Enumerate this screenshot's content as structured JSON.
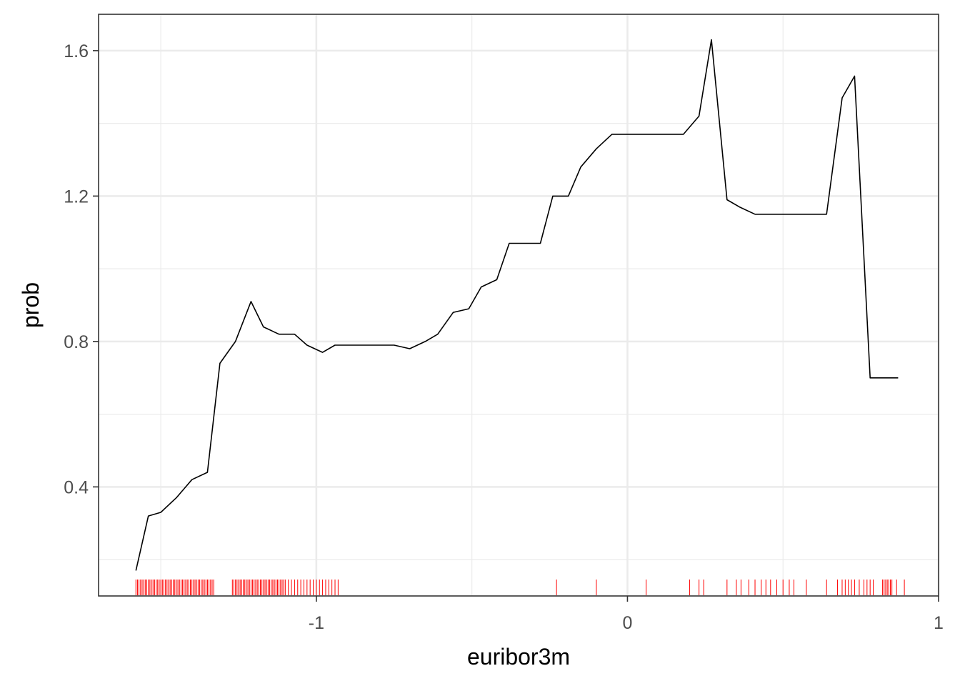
{
  "chart_data": {
    "type": "line",
    "title": "",
    "xlabel": "euribor3m",
    "ylabel": "prob",
    "xlim": [
      -1.7,
      1.0
    ],
    "ylim": [
      0.1,
      1.7
    ],
    "x_ticks": [
      -1,
      0,
      1
    ],
    "x_tick_labels": [
      "-1",
      "0",
      "1"
    ],
    "y_ticks": [
      0.4,
      0.8,
      1.2,
      1.6
    ],
    "y_tick_labels": [
      "0.4",
      "0.8",
      "1.2",
      "1.6"
    ],
    "grid": true,
    "legend": "none",
    "colors": {
      "line": "#000000",
      "rug": "#ff0000",
      "grid": "#ebebeb",
      "border": "#333333"
    },
    "series": [
      {
        "x": [
          -1.58,
          -1.54,
          -1.5,
          -1.45,
          -1.4,
          -1.35,
          -1.31,
          -1.26,
          -1.21,
          -1.17,
          -1.12,
          -1.07,
          -1.03,
          -0.98,
          -0.94,
          -0.89,
          -0.84,
          -0.8,
          -0.75,
          -0.7,
          -0.65,
          -0.61,
          -0.56,
          -0.51,
          -0.47,
          -0.42,
          -0.38,
          -0.33,
          -0.28,
          -0.24,
          -0.19,
          -0.15,
          -0.1,
          -0.05,
          -0.01,
          0.04,
          0.09,
          0.13,
          0.18,
          0.23,
          0.27,
          0.32,
          0.36,
          0.41,
          0.45,
          0.5,
          0.55,
          0.59,
          0.64,
          0.69,
          0.73,
          0.78,
          0.83,
          0.87
        ],
        "y": [
          0.17,
          0.32,
          0.33,
          0.37,
          0.42,
          0.44,
          0.74,
          0.8,
          0.91,
          0.84,
          0.82,
          0.82,
          0.79,
          0.77,
          0.79,
          0.79,
          0.79,
          0.79,
          0.79,
          0.78,
          0.8,
          0.82,
          0.88,
          0.89,
          0.95,
          0.97,
          1.07,
          1.07,
          1.07,
          1.2,
          1.2,
          1.28,
          1.33,
          1.37,
          1.37,
          1.37,
          1.37,
          1.37,
          1.37,
          1.42,
          1.63,
          1.19,
          1.17,
          1.15,
          1.15,
          1.15,
          1.15,
          1.15,
          1.15,
          1.47,
          1.53,
          0.7,
          0.7,
          0.7
        ]
      }
    ],
    "rug_x": [
      -1.58,
      -1.575,
      -1.57,
      -1.565,
      -1.56,
      -1.555,
      -1.55,
      -1.545,
      -1.54,
      -1.535,
      -1.53,
      -1.525,
      -1.52,
      -1.515,
      -1.51,
      -1.505,
      -1.5,
      -1.495,
      -1.49,
      -1.485,
      -1.48,
      -1.475,
      -1.47,
      -1.465,
      -1.46,
      -1.455,
      -1.45,
      -1.445,
      -1.44,
      -1.435,
      -1.43,
      -1.425,
      -1.42,
      -1.415,
      -1.41,
      -1.405,
      -1.4,
      -1.395,
      -1.39,
      -1.385,
      -1.38,
      -1.375,
      -1.37,
      -1.365,
      -1.36,
      -1.355,
      -1.35,
      -1.345,
      -1.34,
      -1.335,
      -1.33,
      -1.27,
      -1.265,
      -1.26,
      -1.255,
      -1.25,
      -1.245,
      -1.24,
      -1.235,
      -1.23,
      -1.225,
      -1.22,
      -1.215,
      -1.21,
      -1.205,
      -1.2,
      -1.195,
      -1.19,
      -1.185,
      -1.18,
      -1.175,
      -1.17,
      -1.165,
      -1.16,
      -1.155,
      -1.15,
      -1.145,
      -1.14,
      -1.135,
      -1.13,
      -1.125,
      -1.12,
      -1.115,
      -1.11,
      -1.105,
      -1.1,
      -1.09,
      -1.08,
      -1.07,
      -1.06,
      -1.05,
      -1.04,
      -1.03,
      -1.02,
      -1.01,
      -1.0,
      -0.99,
      -0.98,
      -0.97,
      -0.96,
      -0.95,
      -0.94,
      -0.93,
      -0.228,
      -0.1,
      0.06,
      0.2,
      0.23,
      0.245,
      0.32,
      0.35,
      0.365,
      0.39,
      0.41,
      0.43,
      0.445,
      0.46,
      0.48,
      0.5,
      0.52,
      0.535,
      0.575,
      0.64,
      0.675,
      0.69,
      0.7,
      0.71,
      0.72,
      0.73,
      0.745,
      0.76,
      0.77,
      0.78,
      0.79,
      0.82,
      0.825,
      0.83,
      0.835,
      0.84,
      0.845,
      0.85,
      0.865,
      0.89
    ]
  }
}
